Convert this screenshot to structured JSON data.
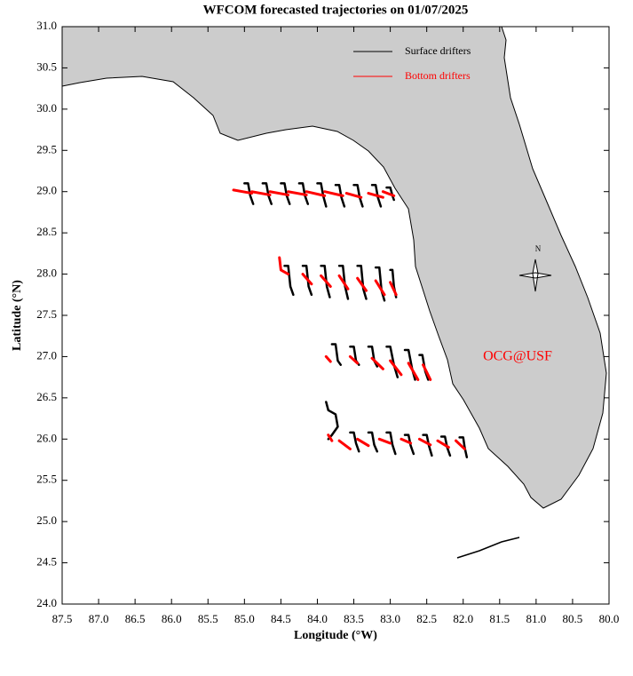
{
  "chart_data": {
    "type": "trajectory-map",
    "title": "WFCOM forecasted trajectories on 01/07/2025",
    "x_label": "Longitude (°W)",
    "y_label": "Latitude (°N)",
    "annotation": "OCG@USF",
    "compass_label": "N",
    "xlim": [
      87.5,
      80.0
    ],
    "ylim": [
      24.0,
      31.0
    ],
    "xticks": [
      87.5,
      {
        "value": 87,
        "label": "87.0"
      },
      86.5,
      {
        "value": 86,
        "label": "86.0"
      },
      85.5,
      {
        "value": 85,
        "label": "85.0"
      },
      84.5,
      {
        "value": 84,
        "label": "84.0"
      },
      83.5,
      {
        "value": 83,
        "label": "83.0"
      },
      82.5,
      {
        "value": 82,
        "label": "82.0"
      },
      81.5,
      {
        "value": 81,
        "label": "81.0"
      },
      80.5,
      {
        "value": 80,
        "label": "80.0"
      }
    ],
    "yticks": [
      {
        "value": 31,
        "label": "31.0"
      },
      30.5,
      {
        "value": 30,
        "label": "30.0"
      },
      29.5,
      {
        "value": 29,
        "label": "29.0"
      },
      28.5,
      {
        "value": 28,
        "label": "28.0"
      },
      27.5,
      {
        "value": 27,
        "label": "27.0"
      },
      26.5,
      {
        "value": 26,
        "label": "26.0"
      },
      25.5,
      {
        "value": 25,
        "label": "25.0"
      },
      24.5,
      {
        "value": 24,
        "label": "24.0"
      }
    ],
    "legend": "top-right",
    "series": [
      {
        "name": "Surface drifters",
        "color": "#000000",
        "tracks": [
          {
            "x": [
              85.0,
              84.95,
              84.92,
              84.88
            ],
            "y": [
              29.1,
              29.1,
              28.95,
              28.85
            ]
          },
          {
            "x": [
              84.75,
              84.7,
              84.67,
              84.63
            ],
            "y": [
              29.1,
              29.1,
              28.95,
              28.85
            ]
          },
          {
            "x": [
              84.5,
              84.45,
              84.42,
              84.38
            ],
            "y": [
              29.1,
              29.1,
              28.95,
              28.85
            ]
          },
          {
            "x": [
              84.25,
              84.2,
              84.17,
              84.13
            ],
            "y": [
              29.1,
              29.1,
              28.95,
              28.85
            ]
          },
          {
            "x": [
              84.0,
              83.95,
              83.92,
              83.88
            ],
            "y": [
              29.1,
              29.1,
              28.95,
              28.82
            ]
          },
          {
            "x": [
              83.75,
              83.7,
              83.67,
              83.63
            ],
            "y": [
              29.08,
              29.08,
              28.93,
              28.82
            ]
          },
          {
            "x": [
              83.5,
              83.45,
              83.42,
              83.38
            ],
            "y": [
              29.08,
              29.08,
              28.93,
              28.82
            ]
          },
          {
            "x": [
              83.25,
              83.2,
              83.17,
              83.13
            ],
            "y": [
              29.08,
              29.08,
              28.93,
              28.82
            ]
          },
          {
            "x": [
              83.05,
              83.0,
              82.97,
              82.95
            ],
            "y": [
              29.05,
              29.05,
              28.95,
              28.9
            ]
          },
          {
            "x": [
              84.45,
              84.4,
              84.37,
              84.33
            ],
            "y": [
              28.1,
              28.1,
              27.85,
              27.75
            ]
          },
          {
            "x": [
              84.2,
              84.15,
              84.12,
              84.08
            ],
            "y": [
              28.1,
              28.1,
              27.85,
              27.75
            ]
          },
          {
            "x": [
              83.95,
              83.9,
              83.87,
              83.83
            ],
            "y": [
              28.1,
              28.1,
              27.85,
              27.72
            ]
          },
          {
            "x": [
              83.7,
              83.65,
              83.62,
              83.58
            ],
            "y": [
              28.1,
              28.1,
              27.85,
              27.7
            ]
          },
          {
            "x": [
              83.45,
              83.4,
              83.37,
              83.33
            ],
            "y": [
              28.1,
              28.1,
              27.82,
              27.7
            ]
          },
          {
            "x": [
              83.2,
              83.15,
              83.12,
              83.08
            ],
            "y": [
              28.08,
              28.08,
              27.8,
              27.68
            ]
          },
          {
            "x": [
              83.0,
              82.97,
              82.95,
              82.92
            ],
            "y": [
              28.05,
              28.05,
              27.85,
              27.72
            ]
          },
          {
            "x": [
              83.8,
              83.75,
              83.72,
              83.68
            ],
            "y": [
              27.15,
              27.15,
              26.95,
              26.9
            ]
          },
          {
            "x": [
              83.55,
              83.5,
              83.47,
              83.43
            ],
            "y": [
              27.12,
              27.12,
              26.95,
              26.9
            ]
          },
          {
            "x": [
              83.3,
              83.25,
              83.22,
              83.18
            ],
            "y": [
              27.12,
              27.12,
              26.95,
              26.88
            ]
          },
          {
            "x": [
              83.05,
              83.0,
              82.95,
              82.9
            ],
            "y": [
              27.12,
              27.12,
              26.9,
              26.75
            ]
          },
          {
            "x": [
              82.8,
              82.75,
              82.7,
              82.66
            ],
            "y": [
              27.08,
              27.08,
              26.85,
              26.72
            ]
          },
          {
            "x": [
              82.6,
              82.56,
              82.52,
              82.48
            ],
            "y": [
              27.02,
              27.02,
              26.82,
              26.72
            ]
          },
          {
            "x": [
              83.88,
              83.85,
              83.75,
              83.72,
              83.8,
              83.85
            ],
            "y": [
              26.45,
              26.35,
              26.3,
              26.15,
              26.05,
              26.0
            ]
          },
          {
            "x": [
              83.55,
              83.5,
              83.47,
              83.43
            ],
            "y": [
              26.08,
              26.08,
              25.95,
              25.85
            ]
          },
          {
            "x": [
              83.3,
              83.25,
              83.22,
              83.18
            ],
            "y": [
              26.08,
              26.08,
              25.93,
              25.85
            ]
          },
          {
            "x": [
              83.05,
              83.0,
              82.97,
              82.93
            ],
            "y": [
              26.08,
              26.08,
              25.93,
              25.82
            ]
          },
          {
            "x": [
              82.8,
              82.75,
              82.72,
              82.68
            ],
            "y": [
              26.05,
              26.05,
              25.92,
              25.82
            ]
          },
          {
            "x": [
              82.55,
              82.5,
              82.47,
              82.43
            ],
            "y": [
              26.05,
              26.05,
              25.92,
              25.8
            ]
          },
          {
            "x": [
              82.3,
              82.25,
              82.22,
              82.18
            ],
            "y": [
              26.03,
              26.03,
              25.9,
              25.8
            ]
          },
          {
            "x": [
              82.05,
              82.0,
              81.98,
              81.95
            ],
            "y": [
              26.02,
              26.02,
              25.9,
              25.78
            ]
          }
        ]
      },
      {
        "name": "Bottom drifters",
        "color": "#ff0000",
        "tracks": [
          {
            "x": [
              85.15,
              84.9
            ],
            "y": [
              29.02,
              28.98
            ]
          },
          {
            "x": [
              84.9,
              84.65
            ],
            "y": [
              29.0,
              28.96
            ]
          },
          {
            "x": [
              84.65,
              84.4
            ],
            "y": [
              29.0,
              28.96
            ]
          },
          {
            "x": [
              84.4,
              84.15
            ],
            "y": [
              29.0,
              28.96
            ]
          },
          {
            "x": [
              84.15,
              83.9
            ],
            "y": [
              29.0,
              28.95
            ]
          },
          {
            "x": [
              83.9,
              83.65
            ],
            "y": [
              29.0,
              28.95
            ]
          },
          {
            "x": [
              83.6,
              83.4
            ],
            "y": [
              28.98,
              28.93
            ]
          },
          {
            "x": [
              83.3,
              83.1
            ],
            "y": [
              28.98,
              28.93
            ]
          },
          {
            "x": [
              83.1,
              82.95
            ],
            "y": [
              29.0,
              28.95
            ]
          },
          {
            "x": [
              84.52,
              84.5,
              84.4
            ],
            "y": [
              28.2,
              28.05,
              28.0
            ]
          },
          {
            "x": [
              84.2,
              84.08
            ],
            "y": [
              28.0,
              27.88
            ]
          },
          {
            "x": [
              83.95,
              83.82
            ],
            "y": [
              27.98,
              27.85
            ]
          },
          {
            "x": [
              83.7,
              83.58
            ],
            "y": [
              27.98,
              27.82
            ]
          },
          {
            "x": [
              83.45,
              83.33
            ],
            "y": [
              27.95,
              27.8
            ]
          },
          {
            "x": [
              83.2,
              83.08
            ],
            "y": [
              27.92,
              27.75
            ]
          },
          {
            "x": [
              83.0,
              82.92
            ],
            "y": [
              27.9,
              27.75
            ]
          },
          {
            "x": [
              83.88,
              83.82
            ],
            "y": [
              27.0,
              26.94
            ]
          },
          {
            "x": [
              83.55,
              83.45
            ],
            "y": [
              27.0,
              26.92
            ]
          },
          {
            "x": [
              83.25,
              83.1
            ],
            "y": [
              26.98,
              26.85
            ]
          },
          {
            "x": [
              83.0,
              82.85
            ],
            "y": [
              26.95,
              26.78
            ]
          },
          {
            "x": [
              82.75,
              82.62
            ],
            "y": [
              26.92,
              26.72
            ]
          },
          {
            "x": [
              82.55,
              82.45
            ],
            "y": [
              26.9,
              26.72
            ]
          },
          {
            "x": [
              83.85,
              83.8
            ],
            "y": [
              26.05,
              25.98
            ]
          },
          {
            "x": [
              83.7,
              83.55
            ],
            "y": [
              25.98,
              25.88
            ]
          },
          {
            "x": [
              83.45,
              83.3
            ],
            "y": [
              26.0,
              25.92
            ]
          },
          {
            "x": [
              83.15,
              83.0
            ],
            "y": [
              26.0,
              25.95
            ]
          },
          {
            "x": [
              82.85,
              82.72
            ],
            "y": [
              26.0,
              25.95
            ]
          },
          {
            "x": [
              82.6,
              82.45
            ],
            "y": [
              26.0,
              25.93
            ]
          },
          {
            "x": [
              82.35,
              82.2
            ],
            "y": [
              25.98,
              25.9
            ]
          },
          {
            "x": [
              82.1,
              81.98
            ],
            "y": [
              25.98,
              25.88
            ]
          }
        ]
      }
    ]
  }
}
